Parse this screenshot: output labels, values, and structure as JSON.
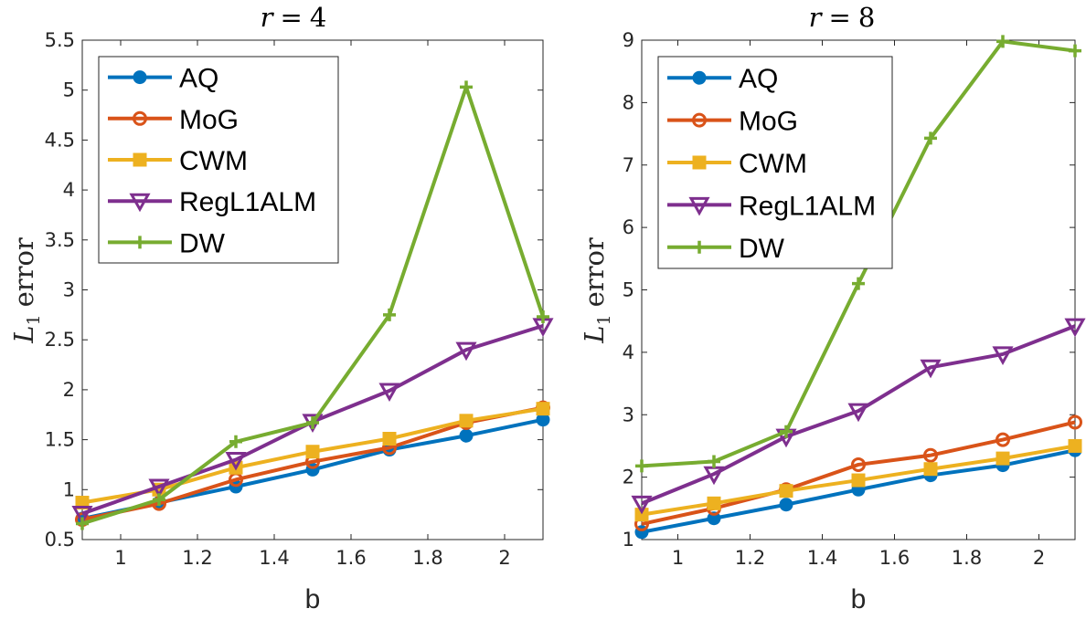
{
  "chart_data": [
    {
      "type": "line",
      "title_var": "r",
      "title_eq": "=",
      "title_val": "4",
      "xlabel": "b",
      "ylabel_main": "L",
      "ylabel_sub": "1",
      "ylabel_rest": "error",
      "xlim": [
        0.9,
        2.1
      ],
      "ylim": [
        0.5,
        5.5
      ],
      "xticks": [
        1,
        1.2,
        1.4,
        1.6,
        1.8,
        2
      ],
      "xtick_labels": [
        "1",
        "1.2",
        "1.4",
        "1.6",
        "1.8",
        "2"
      ],
      "yticks": [
        0.5,
        1,
        1.5,
        2,
        2.5,
        3,
        3.5,
        4,
        4.5,
        5,
        5.5
      ],
      "ytick_labels": [
        "0.5",
        "1",
        "1.5",
        "2",
        "2.5",
        "3",
        "3.5",
        "4",
        "4.5",
        "5",
        "5.5"
      ],
      "grid": false,
      "legend_position": "top-left",
      "x": [
        0.9,
        1.1,
        1.3,
        1.5,
        1.7,
        1.9,
        2.1
      ],
      "series": [
        {
          "name": "AQ",
          "color": "#0072BD",
          "marker": "circle-filled",
          "values": [
            0.71,
            0.87,
            1.03,
            1.2,
            1.4,
            1.54,
            1.7
          ]
        },
        {
          "name": "MoG",
          "color": "#D95319",
          "marker": "circle-open",
          "values": [
            0.7,
            0.86,
            1.1,
            1.28,
            1.42,
            1.67,
            1.82
          ]
        },
        {
          "name": "CWM",
          "color": "#EDB120",
          "marker": "square-filled",
          "values": [
            0.87,
            1.0,
            1.22,
            1.38,
            1.51,
            1.69,
            1.81
          ]
        },
        {
          "name": "RegL1ALM",
          "color": "#7E2F8E",
          "marker": "triangle-down",
          "values": [
            0.76,
            1.03,
            1.3,
            1.68,
            1.99,
            2.4,
            2.64
          ]
        },
        {
          "name": "DW",
          "color": "#77AC30",
          "marker": "plus",
          "values": [
            0.66,
            0.9,
            1.48,
            1.67,
            2.75,
            5.03,
            2.73
          ]
        }
      ]
    },
    {
      "type": "line",
      "title_var": "r",
      "title_eq": "=",
      "title_val": "8",
      "xlabel": "b",
      "ylabel_main": "L",
      "ylabel_sub": "1",
      "ylabel_rest": "error",
      "xlim": [
        0.9,
        2.1
      ],
      "ylim": [
        1,
        9
      ],
      "xticks": [
        1,
        1.2,
        1.4,
        1.6,
        1.8,
        2
      ],
      "xtick_labels": [
        "1",
        "1.2",
        "1.4",
        "1.6",
        "1.8",
        "2"
      ],
      "yticks": [
        1,
        2,
        3,
        4,
        5,
        6,
        7,
        8,
        9
      ],
      "ytick_labels": [
        "1",
        "2",
        "3",
        "4",
        "5",
        "6",
        "7",
        "8",
        "9"
      ],
      "grid": false,
      "legend_position": "top-left",
      "x": [
        0.9,
        1.1,
        1.3,
        1.5,
        1.7,
        1.9,
        2.1
      ],
      "series": [
        {
          "name": "AQ",
          "color": "#0072BD",
          "marker": "circle-filled",
          "values": [
            1.12,
            1.34,
            1.56,
            1.8,
            2.03,
            2.19,
            2.43
          ]
        },
        {
          "name": "MoG",
          "color": "#D95319",
          "marker": "circle-open",
          "values": [
            1.25,
            1.5,
            1.8,
            2.2,
            2.35,
            2.6,
            2.88
          ]
        },
        {
          "name": "CWM",
          "color": "#EDB120",
          "marker": "square-filled",
          "values": [
            1.4,
            1.58,
            1.78,
            1.95,
            2.13,
            2.3,
            2.5
          ]
        },
        {
          "name": "RegL1ALM",
          "color": "#7E2F8E",
          "marker": "triangle-down",
          "values": [
            1.58,
            2.05,
            2.65,
            3.06,
            3.76,
            3.97,
            4.42
          ]
        },
        {
          "name": "DW",
          "color": "#77AC30",
          "marker": "plus",
          "values": [
            2.18,
            2.25,
            2.73,
            5.1,
            7.43,
            8.98,
            8.83
          ]
        }
      ]
    }
  ]
}
